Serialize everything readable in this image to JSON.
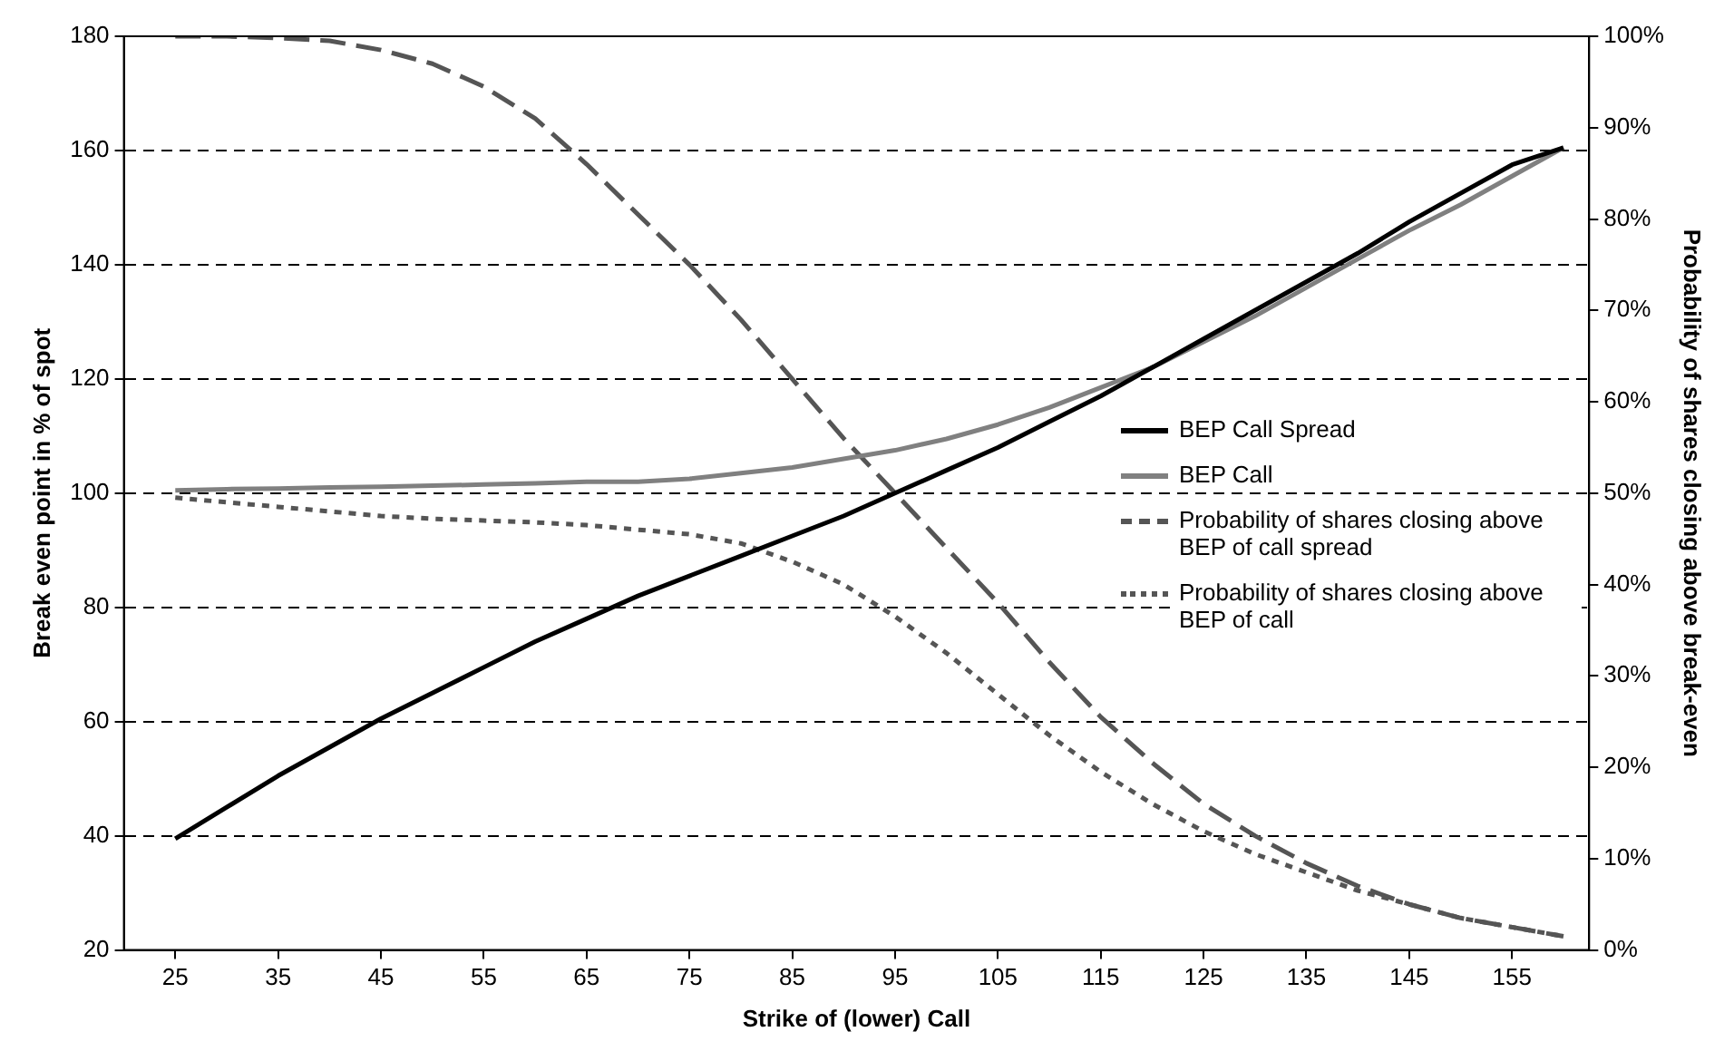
{
  "chart_data": {
    "type": "line",
    "xlabel": "Strike of (lower) Call",
    "ylabel": "Break even point in % of spot",
    "y2label": "Probability of shares closing above break-even",
    "x": [
      25,
      30,
      35,
      40,
      45,
      50,
      55,
      60,
      65,
      70,
      75,
      80,
      85,
      90,
      95,
      100,
      105,
      110,
      115,
      120,
      125,
      130,
      135,
      140,
      145,
      150,
      155,
      160
    ],
    "xlim": [
      20,
      162.5
    ],
    "xticks": [
      25,
      35,
      45,
      55,
      65,
      75,
      85,
      95,
      105,
      115,
      125,
      135,
      145,
      155
    ],
    "ylim": [
      20,
      180
    ],
    "yticks": [
      20,
      40,
      60,
      80,
      100,
      120,
      140,
      160,
      180
    ],
    "y2lim": [
      0,
      100
    ],
    "y2ticks": [
      {
        "value": 0,
        "label": "0%"
      },
      {
        "value": 10,
        "label": "10%"
      },
      {
        "value": 20,
        "label": "20%"
      },
      {
        "value": 30,
        "label": "30%"
      },
      {
        "value": 40,
        "label": "40%"
      },
      {
        "value": 50,
        "label": "50%"
      },
      {
        "value": 60,
        "label": "60%"
      },
      {
        "value": 70,
        "label": "70%"
      },
      {
        "value": 80,
        "label": "80%"
      },
      {
        "value": 90,
        "label": "90%"
      },
      {
        "value": 100,
        "label": "100%"
      }
    ],
    "grid": "y",
    "legend": "right",
    "marker": "none",
    "series": [
      {
        "name": "BEP Call Spread",
        "color": "#000000",
        "line_style": "solid",
        "values": [
          39.5,
          45,
          50.5,
          55.5,
          60.5,
          65,
          69.5,
          74,
          78,
          82,
          85.5,
          89,
          92.5,
          96,
          100,
          104,
          108,
          112.5,
          117,
          122,
          127,
          132,
          137,
          142,
          147.5,
          152.5,
          157.5,
          160.5
        ]
      },
      {
        "name": "BEP Call",
        "color": "#808080",
        "line_style": "solid",
        "values": [
          100.5,
          100.7,
          100.8,
          101,
          101.1,
          101.3,
          101.5,
          101.7,
          102,
          102,
          102.5,
          103.5,
          104.5,
          106,
          107.5,
          109.5,
          112,
          115,
          118.5,
          122,
          126.5,
          131,
          136,
          141,
          146,
          150.5,
          155.5,
          160.5
        ]
      },
      {
        "name": "Probability of shares closing above BEP of call spread",
        "color": "#555555",
        "line_style": "dashed",
        "axis": "y2",
        "values": [
          100,
          100,
          99.8,
          99.5,
          98.5,
          97,
          94.5,
          91,
          86,
          80.5,
          75,
          69,
          62.5,
          56,
          50,
          44,
          38,
          31.5,
          25.5,
          20.5,
          16,
          12.5,
          9.5,
          7,
          5,
          3.5,
          2.5,
          1.5
        ]
      },
      {
        "name": "Probability of shares closing above BEP of call",
        "color": "#555555",
        "line_style": "dotted",
        "axis": "y2",
        "values": [
          49.5,
          49,
          48.5,
          48,
          47.5,
          47.2,
          47,
          46.8,
          46.5,
          46,
          45.5,
          44.5,
          42.5,
          40,
          36.5,
          32.5,
          28,
          23.5,
          19.5,
          16,
          13,
          10.5,
          8.5,
          6.5,
          5,
          3.5,
          2.5,
          1.5
        ]
      }
    ]
  }
}
